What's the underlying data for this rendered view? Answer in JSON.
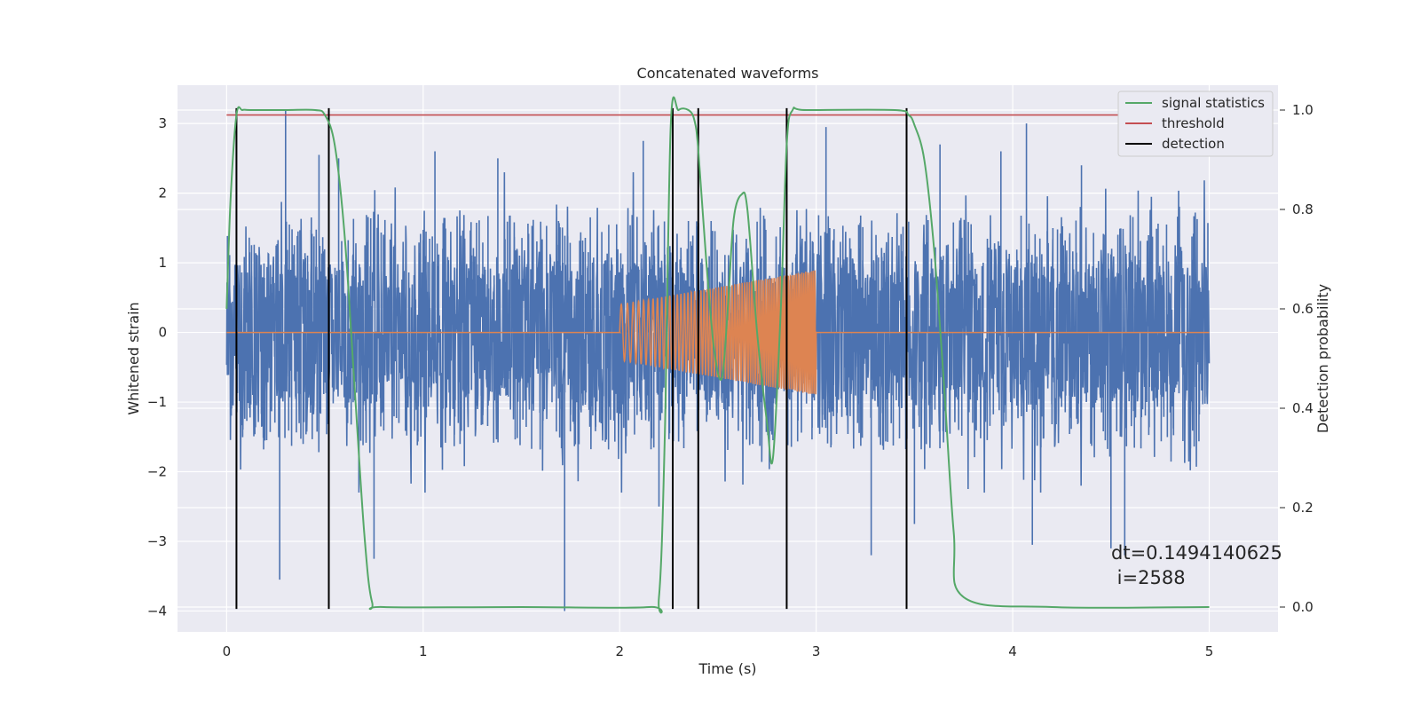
{
  "chart_data": {
    "type": "line",
    "title": "Concatenated waveforms",
    "xlabel": "Time (s)",
    "ylabel": "Whitened strain",
    "y2label": "Detection probability",
    "xlim": [
      -0.25,
      5.35
    ],
    "ylim": [
      -4.3,
      3.55
    ],
    "y2lim": [
      -0.05,
      1.05
    ],
    "xticks": [
      0,
      1,
      2,
      3,
      4,
      5
    ],
    "yticks": [
      3,
      2,
      1,
      0,
      -1,
      -2,
      -3,
      -4
    ],
    "y2ticks": [
      1.0,
      0.8,
      0.6,
      0.4,
      0.2,
      0.0
    ],
    "grid": true,
    "legend_position": "top-right",
    "annotation": [
      "dt=0.1494140625",
      " i=2588"
    ],
    "colors": {
      "background": "#eaeaf2",
      "noise": "#4c72b0",
      "injection": "#dd8452",
      "signal_statistics": "#55a868",
      "threshold": "#c44e52",
      "detection": "#000000"
    },
    "series": [
      {
        "name": "whitened strain (noise)",
        "axis": "left",
        "x_range": [
          0,
          5
        ],
        "envelope_typical": [
          -1.3,
          1.3
        ],
        "extreme_spikes": [
          {
            "x": 0.05,
            "y": -2.7
          },
          {
            "x": 0.27,
            "y": -3.55
          },
          {
            "x": 0.3,
            "y": 3.2
          },
          {
            "x": 0.47,
            "y": 2.55
          },
          {
            "x": 0.57,
            "y": 2.5
          },
          {
            "x": 0.75,
            "y": -3.25
          },
          {
            "x": 1.06,
            "y": 2.6
          },
          {
            "x": 1.72,
            "y": -4.0
          },
          {
            "x": 2.2,
            "y": -2.5
          },
          {
            "x": 2.27,
            "y": 2.85
          },
          {
            "x": 2.4,
            "y": -3.05
          },
          {
            "x": 3.05,
            "y": 2.95
          },
          {
            "x": 3.28,
            "y": -3.2
          },
          {
            "x": 3.5,
            "y": -2.75
          },
          {
            "x": 3.94,
            "y": 2.6
          },
          {
            "x": 4.1,
            "y": -3.05
          },
          {
            "x": 4.35,
            "y": 2.4
          },
          {
            "x": 4.5,
            "y": -3.1
          },
          {
            "x": 4.57,
            "y": -3.2
          },
          {
            "x": 4.07,
            "y": 3.0
          },
          {
            "x": 3.63,
            "y": 2.7
          },
          {
            "x": 2.12,
            "y": 2.75
          },
          {
            "x": 1.38,
            "y": 2.5
          }
        ]
      },
      {
        "name": "injected waveform",
        "axis": "left",
        "x_range": [
          0,
          5
        ],
        "active_range": [
          2.0,
          3.0
        ],
        "amplitude_start": 0.4,
        "amplitude_end": 0.9
      },
      {
        "name": "signal statistics",
        "axis": "right",
        "x": [
          0,
          0.02,
          0.05,
          0.08,
          0.12,
          0.3,
          0.45,
          0.5,
          0.55,
          0.6,
          0.65,
          0.7,
          0.74,
          0.8,
          1.5,
          2.15,
          2.2,
          2.23,
          2.26,
          2.3,
          2.35,
          2.38,
          2.4,
          2.44,
          2.48,
          2.52,
          2.55,
          2.58,
          2.62,
          2.65,
          2.7,
          2.75,
          2.78,
          2.82,
          2.85,
          2.88,
          2.95,
          3.4,
          3.47,
          3.5,
          3.55,
          3.6,
          3.65,
          3.7,
          3.75,
          4.2,
          5.0
        ],
        "y": [
          0.6,
          0.82,
          0.99,
          1.0,
          1.0,
          1.0,
          1.0,
          0.99,
          0.93,
          0.75,
          0.45,
          0.15,
          0.01,
          0.0,
          0.0,
          0.0,
          0.02,
          0.35,
          0.97,
          1.0,
          1.0,
          0.98,
          0.92,
          0.7,
          0.52,
          0.46,
          0.6,
          0.78,
          0.83,
          0.8,
          0.55,
          0.37,
          0.3,
          0.6,
          0.93,
          1.0,
          1.0,
          1.0,
          0.99,
          0.97,
          0.9,
          0.72,
          0.45,
          0.15,
          0.02,
          0.0,
          0.0
        ]
      },
      {
        "name": "threshold",
        "axis": "right",
        "value": 0.99
      },
      {
        "name": "detection",
        "axis": "left",
        "x": [
          0.05,
          0.52,
          2.27,
          2.4,
          2.85,
          3.46
        ],
        "y_range": [
          -3.97,
          3.22
        ]
      }
    ]
  }
}
